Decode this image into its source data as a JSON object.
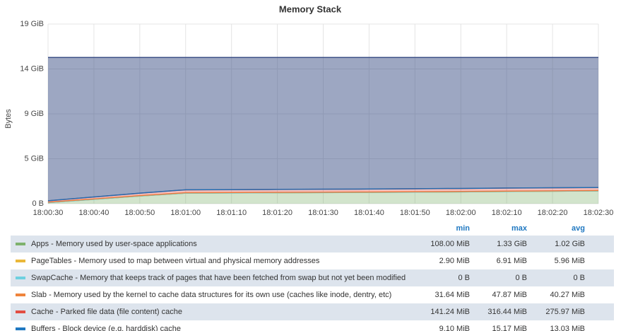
{
  "chart_data": {
    "type": "stacked-area",
    "title": "Memory Stack",
    "y_label": "Bytes",
    "x": [
      "18:00:30",
      "18:00:40",
      "18:00:50",
      "18:01:00",
      "18:01:10",
      "18:01:20",
      "18:01:30",
      "18:01:40",
      "18:01:50",
      "18:02:00",
      "18:02:10",
      "18:02:20",
      "18:02:30"
    ],
    "ylim": [
      0,
      18.8
    ],
    "yticks": [
      {
        "value": 0,
        "label": "0 B"
      },
      {
        "value": 4.7,
        "label": "5 GiB"
      },
      {
        "value": 9.4,
        "label": "9 GiB"
      },
      {
        "value": 14.1,
        "label": "14 GiB"
      },
      {
        "value": 18.8,
        "label": "19 GiB"
      }
    ],
    "grid": true,
    "legend_columns": [
      "min",
      "max",
      "avg"
    ],
    "series": [
      {
        "name": "Apps - Memory used by user-space applications",
        "color": "#7eb26d",
        "values": [
          0.11,
          0.45,
          0.8,
          1.1,
          1.12,
          1.14,
          1.16,
          1.18,
          1.2,
          1.23,
          1.27,
          1.3,
          1.33
        ],
        "min": "108.00 MiB",
        "max": "1.33 GiB",
        "avg": "1.02 GiB"
      },
      {
        "name": "PageTables - Memory used to map between virtual and physical memory addresses",
        "color": "#eab839",
        "values": [
          0.005,
          0.005,
          0.005,
          0.005,
          0.005,
          0.005,
          0.005,
          0.005,
          0.005,
          0.005,
          0.005,
          0.005,
          0.005
        ],
        "min": "2.90 MiB",
        "max": "6.91 MiB",
        "avg": "5.96 MiB"
      },
      {
        "name": "SwapCache - Memory that keeps track of pages that have been fetched from swap but not yet been modified",
        "color": "#6ed0e0",
        "values": [
          0,
          0,
          0,
          0,
          0,
          0,
          0,
          0,
          0,
          0,
          0,
          0,
          0
        ],
        "min": "0 B",
        "max": "0 B",
        "avg": "0 B"
      },
      {
        "name": "Slab - Memory used by the kernel to cache data structures for its own use (caches like inode, dentry, etc)",
        "color": "#ef843c",
        "values": [
          0.04,
          0.04,
          0.04,
          0.04,
          0.04,
          0.04,
          0.04,
          0.04,
          0.04,
          0.04,
          0.04,
          0.04,
          0.04
        ],
        "min": "31.64 MiB",
        "max": "47.87 MiB",
        "avg": "40.27 MiB"
      },
      {
        "name": "Cache - Parked file data (file content) cache",
        "color": "#e24d42",
        "values": [
          0.14,
          0.2,
          0.25,
          0.3,
          0.3,
          0.3,
          0.3,
          0.3,
          0.31,
          0.31,
          0.31,
          0.31,
          0.31
        ],
        "min": "141.24 MiB",
        "max": "316.44 MiB",
        "avg": "275.97 MiB"
      },
      {
        "name": "Buffers - Block device (e.g. harddisk) cache",
        "color": "#1f78c1",
        "values": [
          0.01,
          0.01,
          0.01,
          0.01,
          0.01,
          0.01,
          0.01,
          0.01,
          0.01,
          0.01,
          0.01,
          0.01,
          0.01
        ],
        "min": "9.10 MiB",
        "max": "15.17 MiB",
        "avg": "13.03 MiB"
      },
      {
        "color": "#3b4f86",
        "values": [
          15.0,
          14.6,
          14.2,
          13.85,
          13.83,
          13.81,
          13.79,
          13.77,
          13.74,
          13.71,
          13.67,
          13.64,
          13.61
        ]
      }
    ]
  }
}
